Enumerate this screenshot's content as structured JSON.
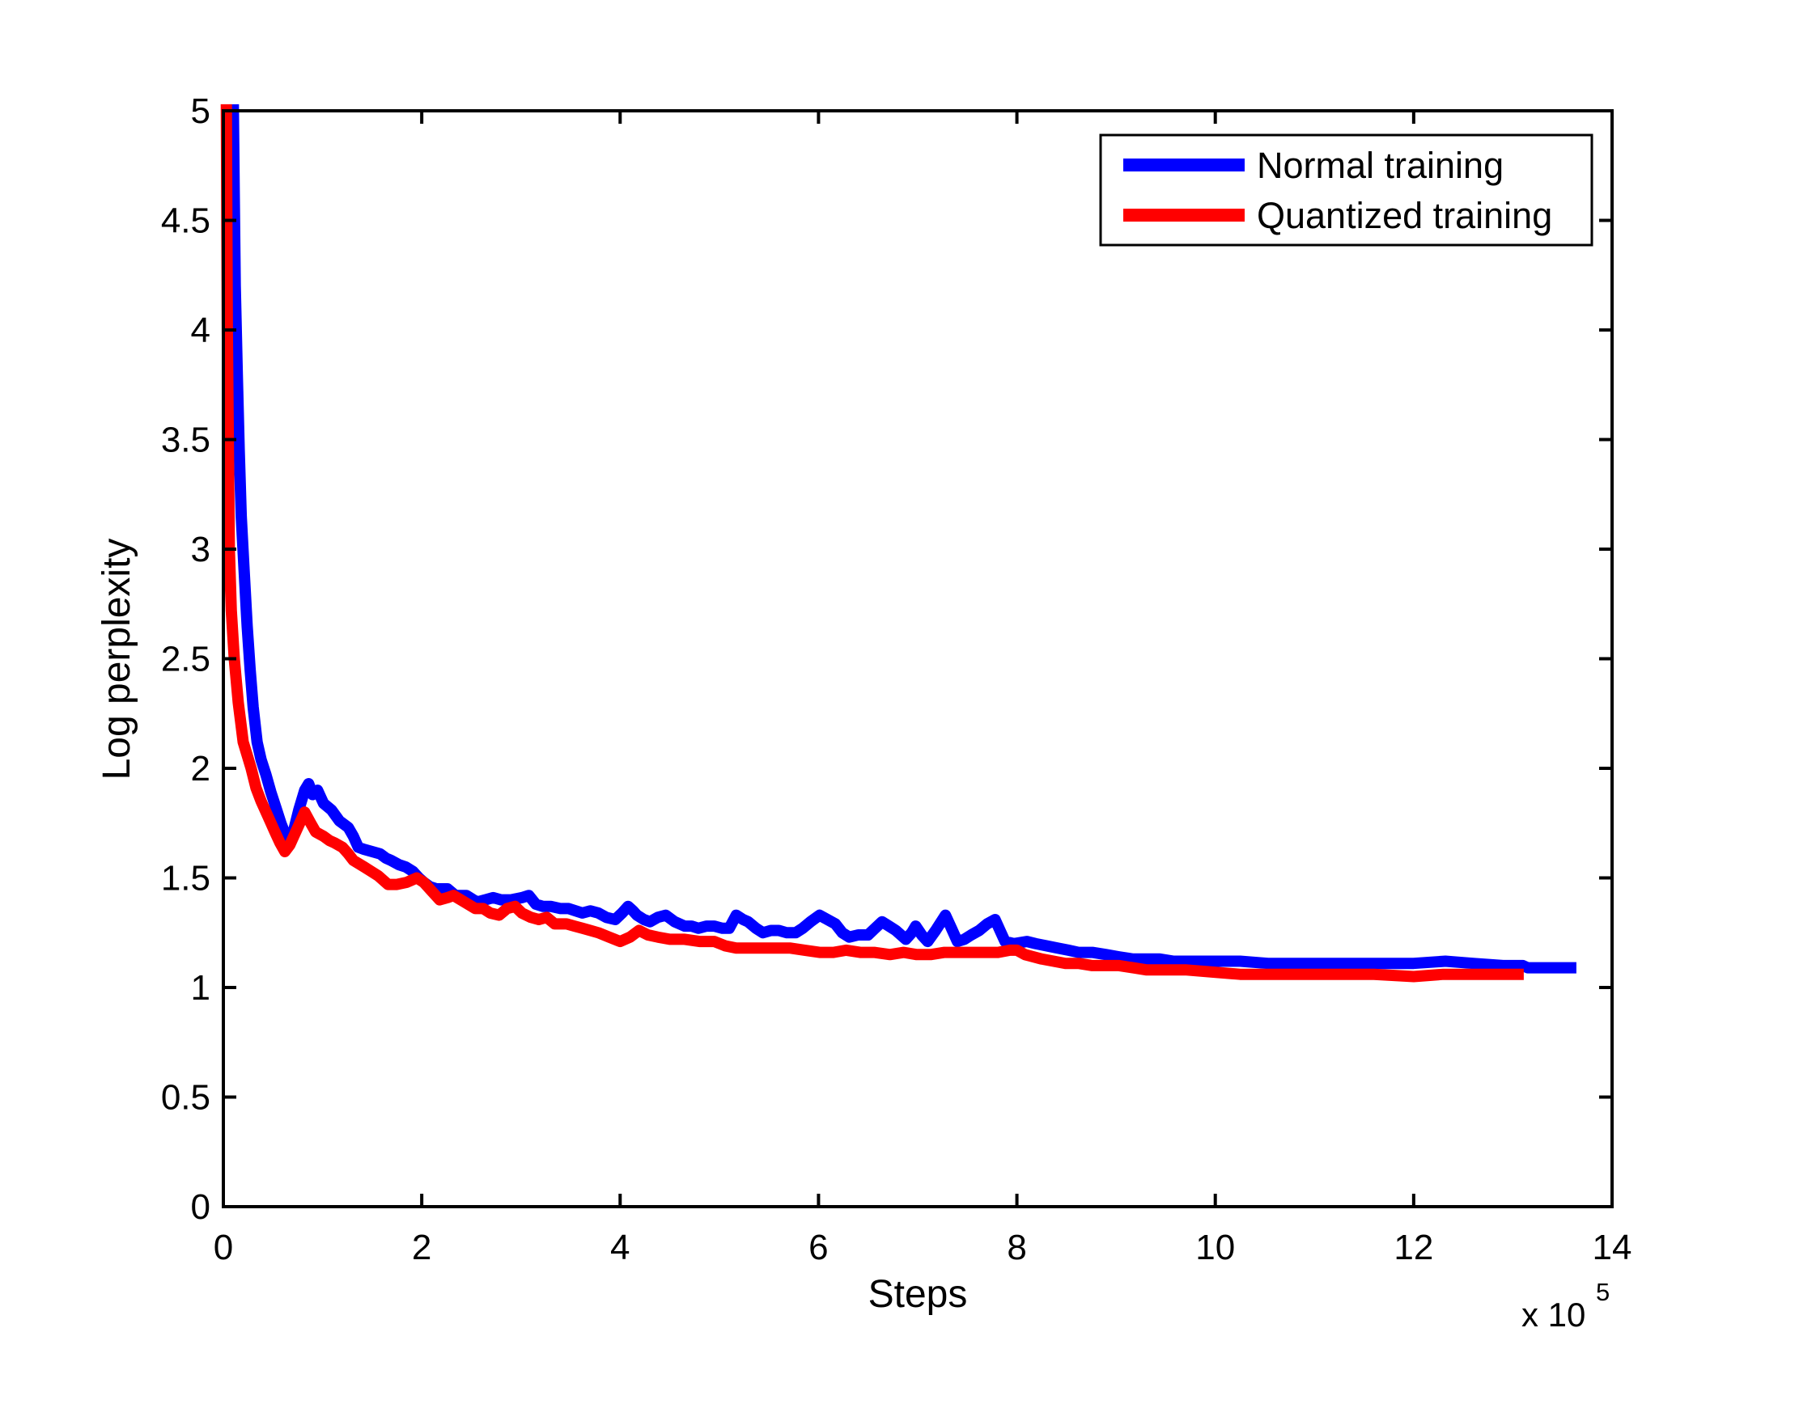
{
  "figure": {
    "background": "#ffffff",
    "plot_border_color": "#000000"
  },
  "chart_data": {
    "type": "line",
    "title": "",
    "xlabel": "Steps",
    "ylabel": "Log perplexity",
    "x_multiplier_base": "x 10",
    "x_multiplier_exponent": "5",
    "xlim": [
      0,
      14
    ],
    "ylim": [
      0,
      5
    ],
    "x_ticks": [
      0,
      2,
      4,
      6,
      8,
      10,
      12,
      14
    ],
    "y_ticks": [
      0,
      0.5,
      1,
      1.5,
      2,
      2.5,
      3,
      3.5,
      4,
      4.5,
      5
    ],
    "grid": false,
    "legend": {
      "position": "top-right",
      "entries": [
        "Normal training",
        "Quantized training"
      ]
    },
    "series": [
      {
        "name": "Normal training",
        "color": "#0000ff",
        "points": [
          [
            0.1,
            5.03
          ],
          [
            0.11,
            4.6
          ],
          [
            0.12,
            4.2
          ],
          [
            0.14,
            3.8
          ],
          [
            0.16,
            3.45
          ],
          [
            0.18,
            3.15
          ],
          [
            0.21,
            2.9
          ],
          [
            0.24,
            2.65
          ],
          [
            0.27,
            2.45
          ],
          [
            0.3,
            2.28
          ],
          [
            0.34,
            2.12
          ],
          [
            0.38,
            2.04
          ],
          [
            0.43,
            1.97
          ],
          [
            0.48,
            1.89
          ],
          [
            0.53,
            1.82
          ],
          [
            0.58,
            1.75
          ],
          [
            0.64,
            1.68
          ],
          [
            0.7,
            1.7
          ],
          [
            0.76,
            1.81
          ],
          [
            0.82,
            1.9
          ],
          [
            0.86,
            1.93
          ],
          [
            0.9,
            1.88
          ],
          [
            0.95,
            1.9
          ],
          [
            1.01,
            1.84
          ],
          [
            1.09,
            1.81
          ],
          [
            1.17,
            1.76
          ],
          [
            1.26,
            1.73
          ],
          [
            1.31,
            1.69
          ],
          [
            1.36,
            1.64
          ],
          [
            1.42,
            1.63
          ],
          [
            1.5,
            1.62
          ],
          [
            1.58,
            1.61
          ],
          [
            1.64,
            1.59
          ],
          [
            1.69,
            1.58
          ],
          [
            1.77,
            1.56
          ],
          [
            1.84,
            1.55
          ],
          [
            1.91,
            1.53
          ],
          [
            1.97,
            1.5
          ],
          [
            2.02,
            1.48
          ],
          [
            2.08,
            1.46
          ],
          [
            2.15,
            1.45
          ],
          [
            2.26,
            1.45
          ],
          [
            2.34,
            1.42
          ],
          [
            2.45,
            1.42
          ],
          [
            2.52,
            1.4
          ],
          [
            2.56,
            1.39
          ],
          [
            2.64,
            1.4
          ],
          [
            2.72,
            1.41
          ],
          [
            2.8,
            1.4
          ],
          [
            2.9,
            1.4
          ],
          [
            3.01,
            1.41
          ],
          [
            3.08,
            1.42
          ],
          [
            3.15,
            1.38
          ],
          [
            3.22,
            1.37
          ],
          [
            3.3,
            1.37
          ],
          [
            3.4,
            1.36
          ],
          [
            3.48,
            1.36
          ],
          [
            3.55,
            1.35
          ],
          [
            3.62,
            1.34
          ],
          [
            3.7,
            1.35
          ],
          [
            3.78,
            1.34
          ],
          [
            3.86,
            1.32
          ],
          [
            3.95,
            1.31
          ],
          [
            4.02,
            1.34
          ],
          [
            4.08,
            1.37
          ],
          [
            4.13,
            1.35
          ],
          [
            4.17,
            1.33
          ],
          [
            4.24,
            1.31
          ],
          [
            4.3,
            1.3
          ],
          [
            4.38,
            1.32
          ],
          [
            4.46,
            1.33
          ],
          [
            4.55,
            1.3
          ],
          [
            4.65,
            1.28
          ],
          [
            4.72,
            1.28
          ],
          [
            4.79,
            1.27
          ],
          [
            4.87,
            1.28
          ],
          [
            4.95,
            1.28
          ],
          [
            5.03,
            1.27
          ],
          [
            5.1,
            1.27
          ],
          [
            5.17,
            1.33
          ],
          [
            5.24,
            1.31
          ],
          [
            5.29,
            1.3
          ],
          [
            5.37,
            1.27
          ],
          [
            5.44,
            1.25
          ],
          [
            5.52,
            1.26
          ],
          [
            5.6,
            1.26
          ],
          [
            5.68,
            1.25
          ],
          [
            5.77,
            1.25
          ],
          [
            5.84,
            1.27
          ],
          [
            5.92,
            1.3
          ],
          [
            6.01,
            1.33
          ],
          [
            6.09,
            1.31
          ],
          [
            6.17,
            1.29
          ],
          [
            6.24,
            1.25
          ],
          [
            6.31,
            1.23
          ],
          [
            6.4,
            1.24
          ],
          [
            6.5,
            1.24
          ],
          [
            6.57,
            1.27
          ],
          [
            6.64,
            1.3
          ],
          [
            6.71,
            1.28
          ],
          [
            6.78,
            1.26
          ],
          [
            6.88,
            1.22
          ],
          [
            6.94,
            1.25
          ],
          [
            6.98,
            1.28
          ],
          [
            7.04,
            1.24
          ],
          [
            7.1,
            1.21
          ],
          [
            7.18,
            1.26
          ],
          [
            7.28,
            1.33
          ],
          [
            7.34,
            1.27
          ],
          [
            7.4,
            1.21
          ],
          [
            7.47,
            1.22
          ],
          [
            7.54,
            1.24
          ],
          [
            7.62,
            1.26
          ],
          [
            7.7,
            1.29
          ],
          [
            7.78,
            1.31
          ],
          [
            7.83,
            1.26
          ],
          [
            7.88,
            1.21
          ],
          [
            7.97,
            1.2
          ],
          [
            8.1,
            1.21
          ],
          [
            8.19,
            1.2
          ],
          [
            8.3,
            1.19
          ],
          [
            8.41,
            1.18
          ],
          [
            8.52,
            1.17
          ],
          [
            8.62,
            1.16
          ],
          [
            8.76,
            1.16
          ],
          [
            8.9,
            1.15
          ],
          [
            9.03,
            1.14
          ],
          [
            9.17,
            1.13
          ],
          [
            9.31,
            1.13
          ],
          [
            9.44,
            1.13
          ],
          [
            9.58,
            1.12
          ],
          [
            9.71,
            1.12
          ],
          [
            9.98,
            1.12
          ],
          [
            10.25,
            1.12
          ],
          [
            10.53,
            1.11
          ],
          [
            10.8,
            1.11
          ],
          [
            11.1,
            1.11
          ],
          [
            11.4,
            1.11
          ],
          [
            11.7,
            1.11
          ],
          [
            12.0,
            1.11
          ],
          [
            12.32,
            1.12
          ],
          [
            12.6,
            1.11
          ],
          [
            12.9,
            1.1
          ],
          [
            13.1,
            1.1
          ],
          [
            13.15,
            1.09
          ],
          [
            13.4,
            1.09
          ],
          [
            13.64,
            1.09
          ]
        ]
      },
      {
        "name": "Quantized training",
        "color": "#ff0000",
        "points": [
          [
            0.03,
            5.03
          ],
          [
            0.035,
            4.5
          ],
          [
            0.04,
            4.0
          ],
          [
            0.05,
            3.5
          ],
          [
            0.06,
            3.0
          ],
          [
            0.08,
            2.72
          ],
          [
            0.11,
            2.5
          ],
          [
            0.15,
            2.3
          ],
          [
            0.2,
            2.12
          ],
          [
            0.24,
            2.06
          ],
          [
            0.28,
            2.0
          ],
          [
            0.33,
            1.91
          ],
          [
            0.38,
            1.85
          ],
          [
            0.45,
            1.78
          ],
          [
            0.52,
            1.71
          ],
          [
            0.57,
            1.66
          ],
          [
            0.62,
            1.62
          ],
          [
            0.67,
            1.65
          ],
          [
            0.74,
            1.72
          ],
          [
            0.82,
            1.8
          ],
          [
            0.88,
            1.75
          ],
          [
            0.93,
            1.71
          ],
          [
            1.01,
            1.69
          ],
          [
            1.07,
            1.67
          ],
          [
            1.12,
            1.66
          ],
          [
            1.2,
            1.64
          ],
          [
            1.26,
            1.61
          ],
          [
            1.31,
            1.58
          ],
          [
            1.42,
            1.55
          ],
          [
            1.49,
            1.53
          ],
          [
            1.56,
            1.51
          ],
          [
            1.66,
            1.47
          ],
          [
            1.75,
            1.47
          ],
          [
            1.85,
            1.48
          ],
          [
            1.95,
            1.5
          ],
          [
            2.02,
            1.48
          ],
          [
            2.1,
            1.44
          ],
          [
            2.18,
            1.4
          ],
          [
            2.26,
            1.41
          ],
          [
            2.32,
            1.42
          ],
          [
            2.43,
            1.39
          ],
          [
            2.54,
            1.36
          ],
          [
            2.62,
            1.36
          ],
          [
            2.69,
            1.34
          ],
          [
            2.78,
            1.33
          ],
          [
            2.86,
            1.36
          ],
          [
            2.94,
            1.37
          ],
          [
            3.01,
            1.34
          ],
          [
            3.1,
            1.32
          ],
          [
            3.18,
            1.31
          ],
          [
            3.26,
            1.32
          ],
          [
            3.34,
            1.29
          ],
          [
            3.46,
            1.29
          ],
          [
            3.54,
            1.28
          ],
          [
            3.62,
            1.27
          ],
          [
            3.7,
            1.26
          ],
          [
            3.78,
            1.25
          ],
          [
            3.89,
            1.23
          ],
          [
            4.0,
            1.21
          ],
          [
            4.1,
            1.23
          ],
          [
            4.19,
            1.26
          ],
          [
            4.28,
            1.24
          ],
          [
            4.38,
            1.23
          ],
          [
            4.5,
            1.22
          ],
          [
            4.65,
            1.22
          ],
          [
            4.8,
            1.21
          ],
          [
            4.95,
            1.21
          ],
          [
            5.06,
            1.19
          ],
          [
            5.17,
            1.18
          ],
          [
            5.3,
            1.18
          ],
          [
            5.44,
            1.18
          ],
          [
            5.58,
            1.18
          ],
          [
            5.71,
            1.18
          ],
          [
            5.86,
            1.17
          ],
          [
            6.01,
            1.16
          ],
          [
            6.15,
            1.16
          ],
          [
            6.28,
            1.17
          ],
          [
            6.42,
            1.16
          ],
          [
            6.56,
            1.16
          ],
          [
            6.72,
            1.15
          ],
          [
            6.86,
            1.16
          ],
          [
            6.99,
            1.15
          ],
          [
            7.13,
            1.15
          ],
          [
            7.27,
            1.16
          ],
          [
            7.4,
            1.16
          ],
          [
            7.54,
            1.16
          ],
          [
            7.68,
            1.16
          ],
          [
            7.81,
            1.16
          ],
          [
            7.93,
            1.17
          ],
          [
            8.0,
            1.17
          ],
          [
            8.08,
            1.15
          ],
          [
            8.25,
            1.13
          ],
          [
            8.37,
            1.12
          ],
          [
            8.49,
            1.11
          ],
          [
            8.62,
            1.11
          ],
          [
            8.76,
            1.1
          ],
          [
            9.03,
            1.1
          ],
          [
            9.17,
            1.09
          ],
          [
            9.31,
            1.08
          ],
          [
            9.5,
            1.08
          ],
          [
            9.71,
            1.08
          ],
          [
            9.98,
            1.07
          ],
          [
            10.25,
            1.06
          ],
          [
            10.6,
            1.06
          ],
          [
            10.96,
            1.06
          ],
          [
            11.3,
            1.06
          ],
          [
            11.6,
            1.06
          ],
          [
            12.0,
            1.05
          ],
          [
            12.3,
            1.06
          ],
          [
            12.6,
            1.06
          ],
          [
            12.85,
            1.06
          ],
          [
            13.11,
            1.06
          ]
        ]
      }
    ]
  }
}
